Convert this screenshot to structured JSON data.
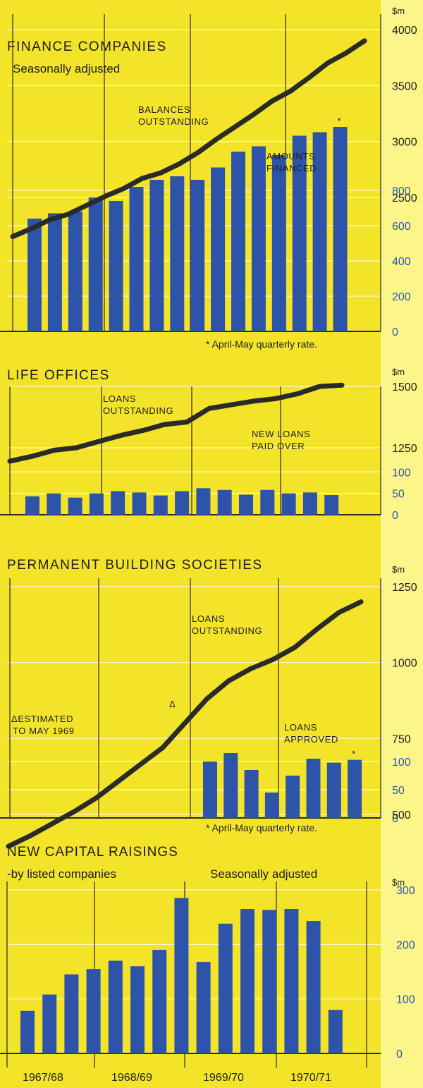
{
  "colors": {
    "background": "#f3e42a",
    "bar": "#2d54a8",
    "line": "#2a2a28",
    "grid": "#fffbd0",
    "strip": "#fbf58a"
  },
  "periods": [
    "1967/68",
    "1968/69",
    "1969/70",
    "1970/71"
  ],
  "unit": "$m",
  "chart_data": [
    {
      "type": "bar",
      "title": "FINANCE COMPANIES",
      "subtitle": "Seasonally adjusted",
      "note": "* April-May quarterly rate.",
      "unit": "$m",
      "line": {
        "label": [
          "BALANCES",
          "OUTSTANDING"
        ],
        "y_ticks": [
          2500,
          3000,
          3500,
          4000
        ],
        "values": [
          2150,
          2220,
          2300,
          2350,
          2430,
          2510,
          2580,
          2670,
          2720,
          2800,
          2900,
          3020,
          3130,
          3240,
          3360,
          3450,
          3570,
          3700,
          3790,
          3900
        ]
      },
      "bars": {
        "label": [
          "AMOUNTS",
          "FINANCED"
        ],
        "y_ticks": [
          0,
          200,
          400,
          600,
          800
        ],
        "values": [
          640,
          670,
          680,
          760,
          740,
          820,
          860,
          880,
          860,
          930,
          1020,
          1050,
          1000,
          1110,
          1130,
          1160
        ]
      },
      "bar_marker": "*"
    },
    {
      "type": "bar",
      "title": "LIFE OFFICES",
      "subtitle": "",
      "note": "",
      "unit": "$m",
      "line": {
        "label": [
          "LOANS",
          "OUTSTANDING"
        ],
        "y_ticks": [
          1250,
          1500
        ],
        "values": [
          1195,
          1215,
          1240,
          1250,
          1275,
          1300,
          1320,
          1345,
          1355,
          1410,
          1425,
          1440,
          1450,
          1470,
          1500,
          1505
        ]
      },
      "bars": {
        "label": [
          "NEW LOANS",
          "PAID OVER"
        ],
        "y_ticks": [
          0,
          50,
          100
        ],
        "values": [
          43,
          50,
          40,
          50,
          55,
          52,
          45,
          55,
          62,
          58,
          47,
          58,
          50,
          52,
          46
        ]
      }
    },
    {
      "type": "bar",
      "title": "PERMANENT BUILDING SOCIETIES",
      "subtitle": "",
      "note": "* April-May quarterly rate.",
      "unit": "$m",
      "line": {
        "label": [
          "LOANS",
          "OUTSTANDING"
        ],
        "y_ticks": [
          500,
          750,
          1000,
          1250
        ],
        "values": [
          395,
          430,
          470,
          510,
          555,
          610,
          665,
          720,
          800,
          880,
          940,
          980,
          1010,
          1050,
          1110,
          1165,
          1200
        ]
      },
      "line_note": {
        "marker": "Δ",
        "label": [
          "ESTIMATED",
          "TO MAY 1969"
        ]
      },
      "bars": {
        "label": [
          "LOANS",
          "APPROVED"
        ],
        "y_ticks": [
          0,
          50,
          100
        ],
        "values": [
          100,
          115,
          85,
          45,
          75,
          105,
          98,
          103
        ]
      },
      "bar_marker": "*"
    },
    {
      "type": "bar",
      "title": "NEW CAPITAL RAISINGS",
      "subtitle": "-by listed companies",
      "subtitle_right": "Seasonally adjusted",
      "note": "",
      "unit": "$m",
      "categories": [
        "1967/68",
        "1968/69",
        "1969/70",
        "1970/71"
      ],
      "bars": {
        "y_ticks": [
          0,
          100,
          200,
          300
        ],
        "values": [
          78,
          108,
          145,
          155,
          170,
          160,
          190,
          285,
          168,
          238,
          265,
          263,
          265,
          243,
          80
        ]
      }
    }
  ]
}
